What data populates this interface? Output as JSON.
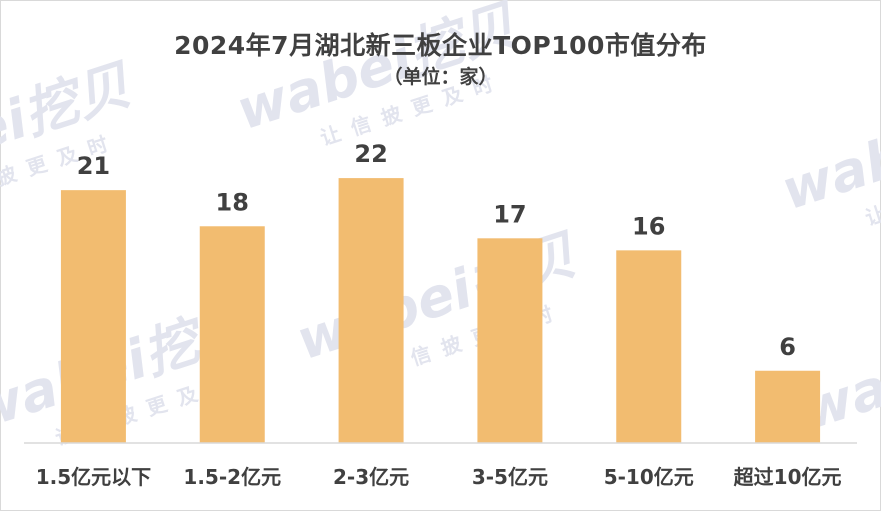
{
  "chart_data": {
    "type": "bar",
    "title": "2024年7月湖北新三板企业TOP100市值分布",
    "subtitle": "（单位：家）",
    "categories": [
      "1.5亿元以下",
      "1.5-2亿元",
      "2-3亿元",
      "3-5亿元",
      "5-10亿元",
      "超过10亿元"
    ],
    "values": [
      21,
      18,
      22,
      17,
      16,
      6
    ],
    "ylim": [
      0,
      24.5
    ],
    "grid": false,
    "legend": "none",
    "bar_color": "#f2bc70",
    "text_color": "#404040"
  },
  "watermark": {
    "brand": "wabei挖贝",
    "slogan": "让信披更及时"
  }
}
